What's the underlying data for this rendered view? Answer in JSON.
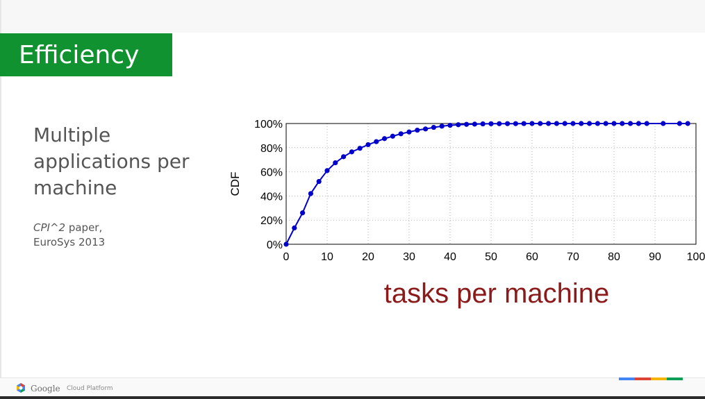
{
  "slide": {
    "title": "Efficiency",
    "bullet_text": "Multiple applications per machine",
    "citation_paper": "CPI^2",
    "citation_rest": " paper,",
    "citation_venue": "EuroSys 2013",
    "brand_color": "#0f922f"
  },
  "footer": {
    "brand_google": "Google",
    "brand_product": "Cloud Platform",
    "logo_icon": "google-cloud-logo-icon",
    "stripe_colors": [
      "#4285f4",
      "#db4437",
      "#f4b400",
      "#0f9d58"
    ]
  },
  "chart_data": {
    "type": "line",
    "title": "",
    "xlabel": "tasks per machine",
    "ylabel": "CDF",
    "xlim": [
      0,
      100
    ],
    "ylim": [
      0,
      100
    ],
    "x_ticks": [
      "0",
      "10",
      "20",
      "30",
      "40",
      "50",
      "60",
      "70",
      "80",
      "90",
      "100"
    ],
    "y_ticks": [
      "0%",
      "20%",
      "40%",
      "60%",
      "80%",
      "100%"
    ],
    "grid": true,
    "legend": "none",
    "series_color": "#0000cc",
    "xlabel_color": "#8b1a1a",
    "series": [
      {
        "x": [
          0,
          2,
          4,
          6,
          8,
          10,
          12,
          14,
          16,
          18,
          20,
          22,
          24,
          26,
          28,
          30,
          32,
          34,
          36,
          38,
          40,
          42,
          44,
          46,
          48,
          50,
          52,
          54,
          56,
          58,
          60,
          62,
          64,
          66,
          68,
          70,
          72,
          74,
          76,
          78,
          80,
          82,
          84,
          86,
          88,
          92,
          96,
          98
        ],
        "y": [
          0,
          13.5,
          26,
          42,
          52,
          61,
          67.5,
          72.5,
          76.5,
          79.5,
          82.5,
          85,
          87.5,
          89.5,
          91.5,
          93,
          94.5,
          95.5,
          96.8,
          97.8,
          98.5,
          99,
          99.3,
          99.5,
          99.7,
          99.8,
          99.85,
          99.9,
          99.9,
          99.95,
          100,
          100,
          100,
          100,
          100,
          100,
          100,
          100,
          100,
          100,
          100,
          100,
          100,
          100,
          100,
          100,
          100,
          100
        ]
      }
    ]
  }
}
